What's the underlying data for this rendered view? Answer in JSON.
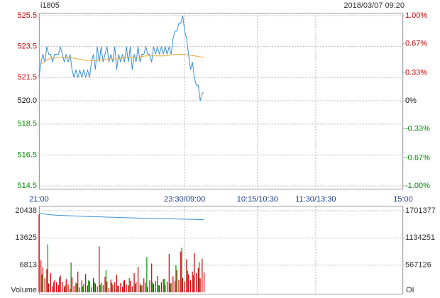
{
  "chart_data": {
    "type": "line",
    "title": "i1805",
    "subtitle": "2018/03/07 09:20",
    "xlim": [
      0,
      375
    ],
    "xticks": [
      {
        "value": 0,
        "label": "21:00"
      },
      {
        "value": 150,
        "label": "23:30/09:00"
      },
      {
        "value": 225,
        "label": "10:15/10:30"
      },
      {
        "value": 285,
        "label": "11:30/13:30"
      },
      {
        "value": 375,
        "label": "15:00"
      }
    ],
    "ylim": [
      514.5,
      525.5
    ],
    "yticks": [
      525.5,
      523.5,
      521.5,
      {
        "value": 520,
        "label": "520.0"
      },
      518.5,
      516.5,
      514.5
    ],
    "y2lim": [
      -1,
      1
    ],
    "y2ticks": [
      {
        "value": 1,
        "label": "1.00%"
      },
      {
        "value": 0.67,
        "label": "0.67%"
      },
      {
        "value": 0.33,
        "label": "0.33%"
      },
      {
        "value": 0,
        "label": "0%"
      },
      {
        "value": -0.33,
        "label": "-0.33%"
      },
      {
        "value": -0.67,
        "label": "-0.67%"
      },
      {
        "value": -1,
        "label": "-1.00%"
      }
    ],
    "up_color": "#cc0000",
    "down_color": "#008800",
    "grid": true,
    "series": [
      {
        "color": "#3a8fd6",
        "x": [
          0,
          2,
          4,
          6,
          8,
          10,
          12,
          14,
          16,
          18,
          20,
          22,
          24,
          26,
          28,
          30,
          32,
          34,
          36,
          38,
          40,
          42,
          44,
          46,
          48,
          50,
          52,
          54,
          56,
          58,
          60,
          62,
          64,
          66,
          68,
          70,
          72,
          74,
          76,
          78,
          80,
          82,
          84,
          86,
          88,
          90,
          92,
          94,
          96,
          98,
          100,
          102,
          104,
          106,
          108,
          110,
          112,
          114,
          116,
          118,
          120,
          122,
          124,
          126,
          128,
          130,
          132,
          134,
          136,
          138,
          140,
          142,
          144,
          146,
          148,
          150,
          152,
          154,
          156,
          158,
          160,
          162,
          164,
          166,
          168,
          170
        ],
        "values": [
          521.5,
          522.5,
          523.0,
          522.5,
          523.5,
          523.0,
          523.0,
          522.5,
          523.0,
          523.0,
          523.0,
          523.5,
          523.0,
          522.5,
          523.0,
          522.5,
          523.0,
          522.0,
          521.5,
          522.0,
          521.5,
          522.0,
          521.5,
          522.0,
          521.5,
          522.0,
          521.5,
          522.5,
          523.0,
          522.0,
          523.5,
          522.5,
          523.5,
          522.5,
          523.0,
          523.5,
          522.5,
          523.0,
          522.5,
          523.5,
          522.0,
          523.0,
          522.5,
          523.0,
          522.5,
          523.5,
          522.5,
          523.5,
          522.0,
          523.0,
          522.5,
          523.5,
          522.5,
          523.0,
          523.0,
          523.5,
          523.0,
          523.0,
          522.5,
          523.5,
          523.0,
          523.5,
          523.0,
          523.5,
          523.0,
          523.5,
          523.0,
          523.5,
          523.0,
          524.0,
          524.5,
          524.5,
          525.0,
          525.0,
          525.5,
          524.5,
          524.0,
          523.0,
          522.0,
          522.5,
          521.5,
          521.0,
          521.0,
          520.0,
          520.5,
          520.5
        ]
      },
      {
        "color": "#e8a83a",
        "x": [
          0,
          10,
          20,
          30,
          40,
          50,
          60,
          70,
          80,
          90,
          100,
          110,
          120,
          130,
          140,
          150,
          160,
          170
        ],
        "values": [
          522.3,
          522.7,
          522.8,
          522.8,
          522.7,
          522.6,
          522.6,
          522.7,
          522.7,
          522.8,
          522.8,
          522.9,
          522.9,
          522.9,
          523.0,
          523.0,
          522.9,
          522.8
        ]
      }
    ],
    "volume": {
      "ylabel": "Volume",
      "y2label": "OI",
      "ylim": [
        0,
        20438
      ],
      "yticks": [
        20438,
        13625,
        6813
      ],
      "y2lim": [
        0,
        1701377
      ],
      "y2ticks": [
        1701377,
        1134251,
        567126
      ],
      "bars": [
        {
          "color": "#cc0000",
          "x": [
            0,
            2,
            4,
            6,
            8,
            10,
            12,
            14,
            16,
            18,
            20,
            22,
            24,
            26,
            28,
            30,
            32,
            34,
            36,
            38,
            40,
            42,
            44,
            46,
            48,
            50,
            52,
            54,
            56,
            58,
            60,
            62,
            64,
            66,
            68,
            70,
            72,
            74,
            76,
            78,
            80,
            82,
            84,
            86,
            88,
            90,
            92,
            94,
            96,
            98,
            100,
            102,
            104,
            106,
            108,
            110,
            112,
            114,
            116,
            118,
            120,
            122,
            124,
            126,
            128,
            130,
            132,
            134,
            136,
            138,
            140,
            142,
            144,
            146,
            148,
            150,
            152,
            154,
            156,
            158,
            160,
            162,
            164,
            166,
            168,
            170
          ],
          "values": [
            19500,
            8000,
            6200,
            3500,
            5800,
            2200,
            4800,
            1500,
            3000,
            2500,
            1800,
            4200,
            2600,
            1400,
            3300,
            2000,
            900,
            3800,
            1600,
            2400,
            5200,
            1200,
            3000,
            2100,
            4600,
            1700,
            2800,
            1300,
            3600,
            2200,
            1500,
            11500,
            2400,
            1800,
            3900,
            2700,
            1100,
            3200,
            1900,
            2500,
            4400,
            1600,
            2300,
            1400,
            3100,
            2000,
            1700,
            2900,
            1500,
            4800,
            2600,
            6400,
            2200,
            1800,
            3500,
            2400,
            1300,
            3000,
            7200,
            2100,
            2800,
            4100,
            1700,
            2500,
            3300,
            1900,
            2700,
            9600,
            2300,
            4000,
            2800,
            5600,
            3100,
            10200,
            3600,
            2700,
            8300,
            4500,
            3000,
            5200,
            9800,
            4800,
            6100,
            3500,
            8400,
            5000
          ]
        },
        {
          "color": "#009900",
          "x": [
            3,
            9,
            15,
            21,
            27,
            33,
            39,
            45,
            51,
            57,
            63,
            69,
            75,
            81,
            87,
            93,
            99,
            105,
            111,
            117,
            123,
            129,
            135,
            141,
            147,
            153,
            159,
            165
          ],
          "values": [
            4500,
            12000,
            2500,
            3800,
            1800,
            7500,
            2200,
            1500,
            3000,
            2600,
            1900,
            5500,
            2400,
            1700,
            2900,
            3600,
            2100,
            1600,
            8800,
            2500,
            1800,
            3400,
            2200,
            6800,
            11200,
            5400,
            4300,
            7600
          ]
        }
      ],
      "oi": {
        "color": "#3a8fd6",
        "axis": "y2",
        "x": [
          0,
          10,
          20,
          30,
          40,
          50,
          60,
          70,
          80,
          90,
          100,
          110,
          120,
          130,
          140,
          150,
          160,
          170
        ],
        "values": [
          1650000,
          1620000,
          1605000,
          1598000,
          1590000,
          1582000,
          1575000,
          1568000,
          1562000,
          1556000,
          1550000,
          1545000,
          1540000,
          1535000,
          1530000,
          1525000,
          1520000,
          1515000
        ]
      }
    }
  }
}
